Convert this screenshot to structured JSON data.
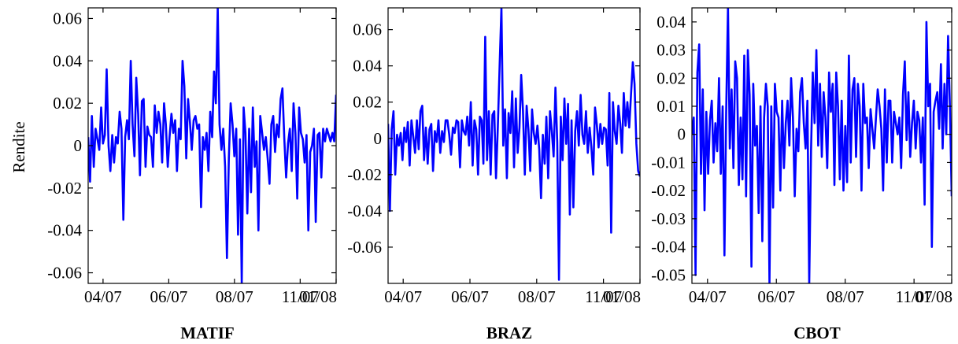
{
  "ylabel": "Rendite",
  "colors": {
    "series": "#0000ff",
    "axis": "#000000"
  },
  "chart_data": [
    {
      "type": "line",
      "title": "MATIF",
      "ylabel": "Rendite",
      "ylim": [
        -0.065,
        0.065
      ],
      "yticks": [
        0.06,
        0.04,
        0.02,
        0,
        -0.02,
        -0.04,
        -0.06
      ],
      "ytick_labels": [
        "0.06",
        "0.04",
        "0.02",
        "0",
        "-0.02",
        "-0.04",
        "-0.06"
      ],
      "xticks": [
        0.06,
        0.325,
        0.59,
        0.855,
        1.0
      ],
      "xtick_labels": [
        "04/07",
        "06/07",
        "08/07",
        "11/07",
        "01/08"
      ],
      "series": [
        {
          "values": [
            0.004,
            -0.017,
            0.014,
            -0.01,
            0.008,
            0.003,
            -0.002,
            0.018,
            0.001,
            0.005,
            0.036,
            0.0,
            -0.012,
            0.005,
            -0.008,
            0.004,
            0.001,
            0.016,
            0.008,
            -0.035,
            0.004,
            0.012,
            0.003,
            0.04,
            0.01,
            -0.005,
            0.032,
            0.015,
            -0.014,
            0.021,
            0.022,
            -0.01,
            0.009,
            0.005,
            0.004,
            -0.01,
            0.019,
            0.006,
            0.016,
            0.01,
            -0.008,
            0.02,
            0.01,
            -0.01,
            0.004,
            0.015,
            0.006,
            0.012,
            -0.012,
            0.008,
            0.003,
            0.04,
            0.028,
            -0.006,
            0.022,
            0.011,
            -0.002,
            0.012,
            0.014,
            0.008,
            0.01,
            -0.029,
            0.004,
            -0.002,
            0.006,
            -0.012,
            0.016,
            0.004,
            0.035,
            0.02,
            0.065,
            0.01,
            -0.002,
            0.008,
            -0.01,
            -0.053,
            -0.006,
            0.02,
            0.01,
            -0.005,
            0.008,
            -0.042,
            0.003,
            -0.065,
            0.018,
            0.006,
            -0.032,
            0.008,
            -0.022,
            0.018,
            -0.01,
            0.002,
            -0.04,
            0.014,
            0.006,
            -0.002,
            0.004,
            -0.006,
            -0.018,
            0.01,
            0.014,
            -0.003,
            0.01,
            0.004,
            0.022,
            0.027,
            0.003,
            -0.015,
            0.001,
            0.008,
            -0.012,
            0.02,
            0.006,
            -0.025,
            0.018,
            0.006,
            0.003,
            -0.008,
            0.005,
            -0.04,
            -0.003,
            0.0,
            0.008,
            -0.036,
            0.005,
            0.006,
            -0.015,
            0.008,
            0.002,
            0.008,
            0.005,
            0.002,
            0.006,
            0.002,
            0.024
          ]
        }
      ]
    },
    {
      "type": "line",
      "title": "BRAZ",
      "ylabel": "",
      "ylim": [
        -0.08,
        0.072
      ],
      "yticks": [
        0.06,
        0.04,
        0.02,
        0,
        -0.02,
        -0.04,
        -0.06
      ],
      "ytick_labels": [
        "0.06",
        "0.04",
        "0.02",
        "0",
        "-0.02",
        "-0.04",
        "-0.06"
      ],
      "xticks": [
        0.06,
        0.325,
        0.59,
        0.855,
        1.0
      ],
      "xtick_labels": [
        "04/07",
        "06/07",
        "08/07",
        "11/07",
        "01/08"
      ],
      "series": [
        {
          "values": [
            0.008,
            -0.04,
            0.005,
            0.015,
            -0.02,
            0.002,
            -0.004,
            0.003,
            -0.012,
            0.006,
            -0.002,
            0.009,
            -0.015,
            0.01,
            0.001,
            -0.008,
            0.01,
            -0.006,
            0.015,
            0.018,
            -0.012,
            0.006,
            -0.014,
            0.005,
            0.008,
            -0.018,
            0.004,
            -0.002,
            0.01,
            -0.008,
            0.004,
            -0.002,
            0.01,
            0.01,
            0.002,
            -0.009,
            0.006,
            0.003,
            0.01,
            0.009,
            -0.016,
            0.01,
            0.004,
            0.002,
            0.012,
            -0.004,
            0.02,
            -0.015,
            0.01,
            0.005,
            -0.02,
            0.012,
            0.01,
            -0.014,
            0.056,
            -0.012,
            0.015,
            -0.02,
            0.013,
            0.015,
            -0.022,
            0.006,
            0.04,
            0.072,
            -0.004,
            0.016,
            -0.022,
            0.014,
            0.003,
            0.026,
            -0.016,
            0.022,
            -0.008,
            0.006,
            0.035,
            0.015,
            -0.02,
            0.018,
            0.005,
            -0.018,
            0.016,
            0.003,
            -0.003,
            0.007,
            -0.006,
            -0.033,
            0.002,
            -0.014,
            0.012,
            -0.022,
            0.015,
            0.004,
            -0.01,
            0.028,
            -0.002,
            -0.078,
            0.012,
            -0.012,
            0.022,
            -0.003,
            0.019,
            -0.042,
            0.01,
            -0.038,
            0.004,
            0.015,
            -0.004,
            0.024,
            0.002,
            -0.003,
            0.015,
            -0.008,
            0.006,
            -0.005,
            -0.02,
            0.017,
            0.008,
            -0.005,
            0.008,
            -0.003,
            0.006,
            0.005,
            -0.015,
            0.025,
            -0.052,
            0.02,
            0.004,
            -0.003,
            0.018,
            0.008,
            -0.008,
            0.025,
            0.007,
            0.02,
            0.006,
            0.024,
            0.042,
            0.03,
            -0.003,
            -0.018,
            -0.021
          ]
        }
      ]
    },
    {
      "type": "line",
      "title": "CBOT",
      "ylabel": "",
      "ylim": [
        -0.053,
        0.045
      ],
      "yticks": [
        0.04,
        0.03,
        0.02,
        0.01,
        0,
        -0.01,
        -0.02,
        -0.03,
        -0.04,
        -0.05
      ],
      "ytick_labels": [
        "0.04",
        "0.03",
        "0.02",
        "0.01",
        "0",
        "-0.01",
        "-0.02",
        "-0.03",
        "-0.04",
        "-0.05"
      ],
      "xticks": [
        0.06,
        0.325,
        0.59,
        0.855,
        1.0
      ],
      "xtick_labels": [
        "04/07",
        "06/07",
        "08/07",
        "11/07",
        "01/08"
      ],
      "series": [
        {
          "values": [
            0.0,
            0.006,
            -0.05,
            0.022,
            0.032,
            -0.014,
            0.016,
            -0.027,
            0.008,
            -0.014,
            0.005,
            0.012,
            -0.01,
            0.004,
            -0.006,
            0.02,
            -0.014,
            0.01,
            -0.043,
            0.008,
            0.045,
            -0.005,
            0.016,
            -0.012,
            0.026,
            0.02,
            -0.018,
            0.006,
            -0.016,
            0.028,
            -0.022,
            0.03,
            0.014,
            -0.047,
            0.018,
            -0.004,
            0.003,
            -0.028,
            0.01,
            -0.038,
            0.006,
            0.018,
            0.01,
            -0.053,
            0.01,
            -0.026,
            0.018,
            0.008,
            0.006,
            -0.02,
            0.012,
            -0.012,
            0.004,
            0.012,
            -0.004,
            0.02,
            0.006,
            -0.022,
            0.002,
            -0.006,
            0.015,
            0.02,
            0.004,
            -0.005,
            0.012,
            -0.053,
            -0.006,
            0.022,
            0.004,
            0.03,
            -0.004,
            0.018,
            -0.008,
            0.015,
            0.006,
            -0.012,
            0.022,
            0.008,
            0.018,
            -0.018,
            0.022,
            0.01,
            -0.016,
            0.012,
            -0.02,
            0.003,
            -0.017,
            0.028,
            -0.01,
            0.016,
            0.02,
            -0.008,
            0.018,
            0.01,
            -0.02,
            0.018,
            0.004,
            0.006,
            -0.012,
            0.009,
            0.002,
            -0.005,
            0.006,
            0.016,
            0.01,
            0.002,
            -0.02,
            0.016,
            -0.01,
            0.012,
            0.012,
            -0.01,
            0.008,
            0.004,
            0.0,
            0.006,
            -0.012,
            0.014,
            0.026,
            -0.002,
            0.015,
            -0.008,
            0.004,
            0.012,
            -0.005,
            0.008,
            0.005,
            -0.01,
            0.006,
            -0.025,
            0.04,
            0.01,
            0.018,
            -0.04,
            0.008,
            0.012,
            0.015,
            0.002,
            0.025,
            -0.005,
            0.018,
            0.0,
            0.035,
            0.01,
            -0.022
          ]
        }
      ]
    }
  ]
}
